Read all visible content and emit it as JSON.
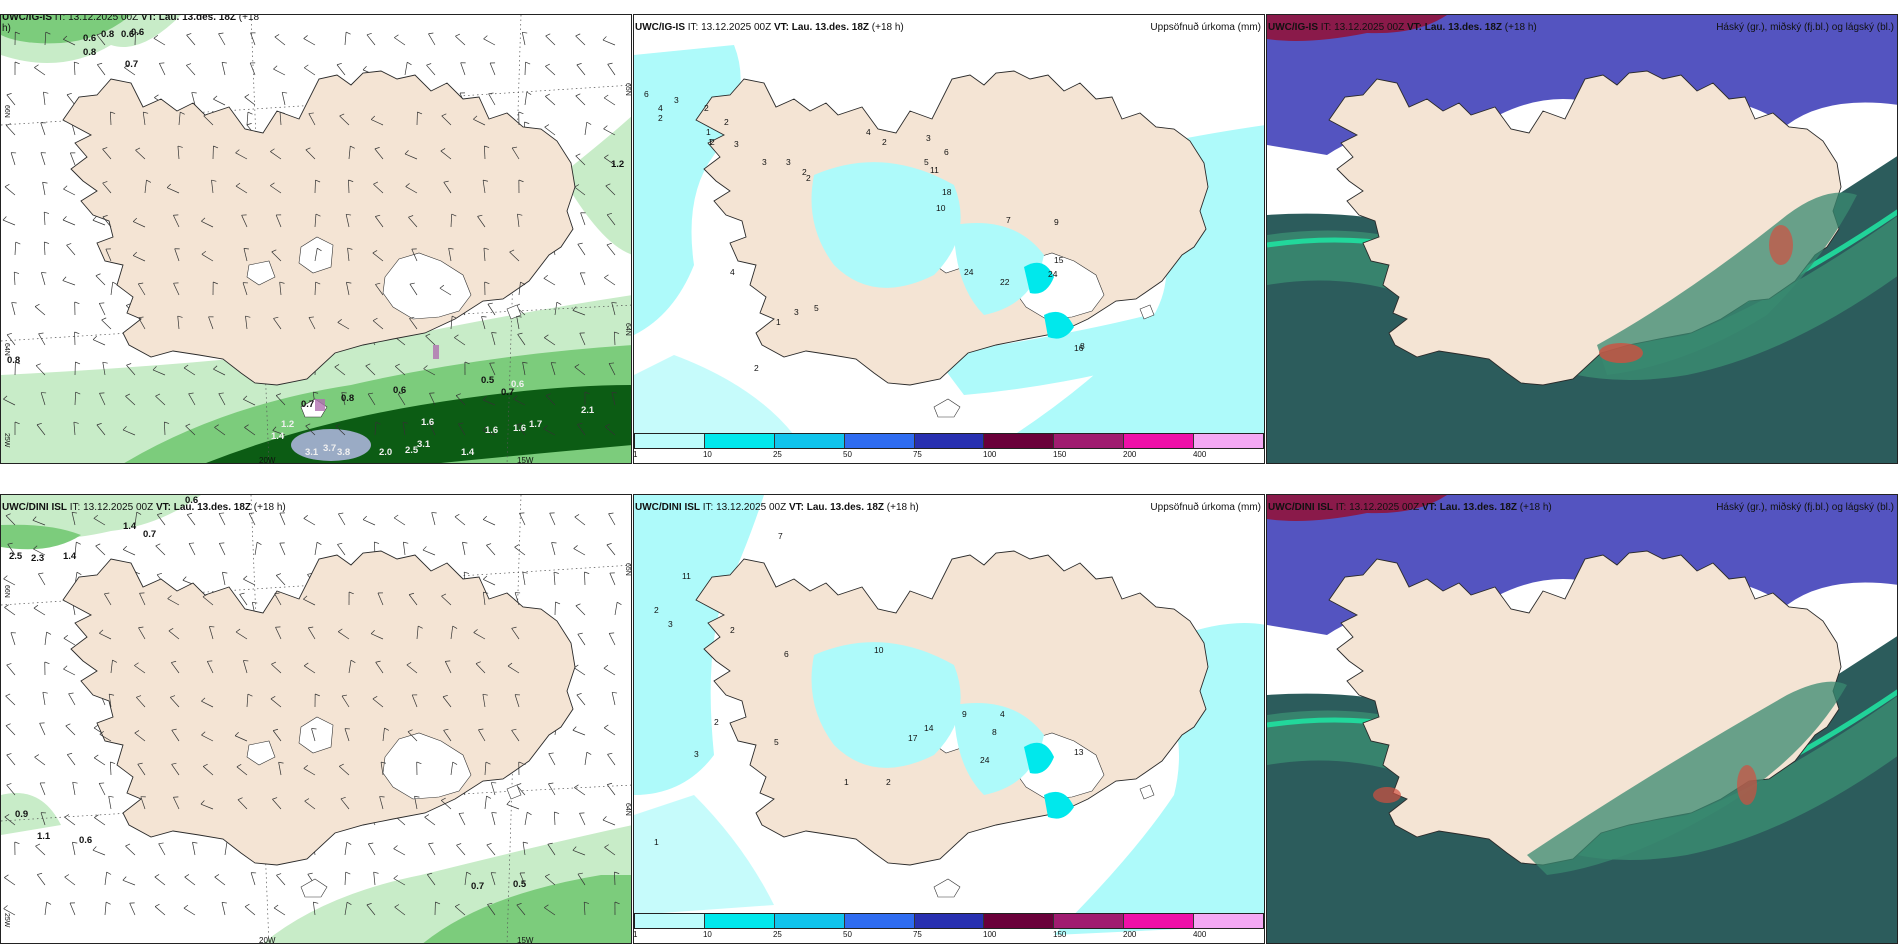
{
  "panels": {
    "top_left": {
      "model": "UWC/IG-IS",
      "init": "IT: 13.12.2025 00Z",
      "valid_label": "VT: Lau. 13.des. 18Z",
      "lead": "(+18",
      "lead_tail": "h)",
      "lon_labels": [
        "20W",
        "15W"
      ],
      "lat_labels": [
        "66N",
        "64N",
        "25W",
        "65N",
        "64N"
      ],
      "values": [
        "0.6",
        "0.8",
        "0.6",
        "0.6",
        "0.8",
        "0.7",
        "1.2",
        "0.8",
        "0.6",
        "0.5",
        "0.7",
        "0.8",
        "0.7",
        "0.6",
        "2.1",
        "1.2",
        "1.6",
        "1.6",
        "1.6",
        "1.7",
        "1.4",
        "3.7",
        "3.8",
        "3.1",
        "2.0",
        "2.5",
        "3.1",
        "1.4"
      ]
    },
    "top_mid": {
      "model": "UWC/IG-IS",
      "init": "IT: 13.12.2025 00Z",
      "valid_label": "VT: Lau. 13.des. 18Z",
      "lead": "(+18 h)",
      "right_title": "Uppsöfnuð úrkoma (mm)",
      "values": [
        "6",
        "4",
        "3",
        "2",
        "2",
        "2",
        "2",
        "3",
        "3",
        "3",
        "2",
        "2",
        "4",
        "2",
        "3",
        "6",
        "5",
        "11",
        "18",
        "10",
        "24",
        "22",
        "24",
        "15",
        "8",
        "16",
        "9",
        "7",
        "4",
        "1",
        "3",
        "5",
        "2",
        "1",
        "1"
      ]
    },
    "top_right": {
      "model": "UWC/IG-IS",
      "init": "IT: 13.12.2025 00Z",
      "valid_label": "VT: Lau. 13.des. 18Z",
      "lead": "(+18 h)",
      "right_title": "Háský (gr.), miðský (fj.bl.) og lágský (bl.)"
    },
    "bottom_left": {
      "model": "UWC/DINI ISL",
      "init": "IT: 13.12.2025 00Z",
      "valid_label": "VT: Lau. 13.des. 18Z",
      "lead": "(+18 h)",
      "lon_labels": [
        "20W",
        "15W"
      ],
      "lat_labels": [
        "66N",
        "25W",
        "65N",
        "64N"
      ],
      "values": [
        "0.6",
        "1.4",
        "0.7",
        "2.5",
        "2.3",
        "1.4",
        "0.9",
        "1.1",
        "0.6",
        "0.7",
        "0.5"
      ]
    },
    "bottom_mid": {
      "model": "UWC/DINI ISL",
      "init": "IT: 13.12.2025 00Z",
      "valid_label": "VT: Lau. 13.des. 18Z",
      "lead": "(+18 h)",
      "right_title": "Uppsöfnuð úrkoma (mm)",
      "values": [
        "7",
        "11",
        "2",
        "3",
        "2",
        "6",
        "10",
        "17",
        "14",
        "24",
        "13",
        "9",
        "8",
        "4",
        "2",
        "3",
        "5",
        "1",
        "2",
        "1"
      ]
    },
    "bottom_right": {
      "model": "UWC/DINI ISL",
      "init": "IT: 13.12.2025 00Z",
      "valid_label": "VT: Lau. 13.des. 18Z",
      "lead": "(+18 h)",
      "right_title": "Háský (gr.), miðský (fj.bl.) og lágský (bl.)"
    }
  },
  "colorbar": {
    "labels": [
      "1",
      "10",
      "25",
      "50",
      "75",
      "100",
      "150",
      "200",
      "400"
    ],
    "colors": [
      "#bdfcfc",
      "#00e8ec",
      "#10c4ec",
      "#2f6cf0",
      "#2830b0",
      "#6a003a",
      "#a01c70",
      "#ee10a8",
      "#f4a8f4"
    ]
  },
  "colors": {
    "land": "#f4e4d4",
    "sea_precip": "#aefafa",
    "wind_green_light": "#c8ecc8",
    "wind_green": "#7ccc7c",
    "wind_green_dark": "#0c5c14",
    "cloud_dark": "#2c5c5c",
    "cloud_mid": "#3a8a70",
    "cloud_high": "#5454c0",
    "cloud_accent": "#20e0a0"
  }
}
